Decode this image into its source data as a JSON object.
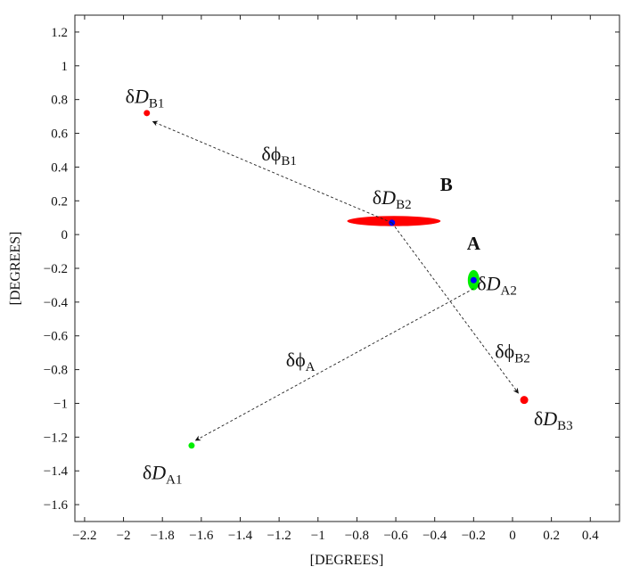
{
  "chart_data": {
    "type": "scatter",
    "xlabel": "[DEGREES]",
    "ylabel": "[DEGREES]",
    "xlim": [
      -2.25,
      0.55
    ],
    "ylim": [
      -1.7,
      1.3
    ],
    "xticks": [
      -2.2,
      -2,
      -1.8,
      -1.6,
      -1.4,
      -1.2,
      -1,
      -0.8,
      -0.6,
      -0.4,
      -0.2,
      0,
      0.2,
      0.4
    ],
    "yticks": [
      1.2,
      1,
      0.8,
      0.6,
      0.4,
      0.2,
      0,
      -0.2,
      -0.4,
      -0.6,
      -0.8,
      -1,
      -1.2,
      -1.4,
      -1.6
    ],
    "grid": false,
    "clusters": [
      {
        "color": "#ff0000",
        "shape": "ellipse",
        "cx": -0.61,
        "cy": 0.08,
        "rx": 0.24,
        "ry": 0.03
      },
      {
        "color": "#00ee00",
        "shape": "ellipse",
        "cx": -0.2,
        "cy": -0.27,
        "rx": 0.03,
        "ry": 0.06
      },
      {
        "color": "#ff0000",
        "shape": "dot",
        "cx": -1.88,
        "cy": 0.72,
        "r": 3.5
      },
      {
        "color": "#00ee00",
        "shape": "dot",
        "cx": -1.65,
        "cy": -1.25,
        "r": 3.5
      },
      {
        "color": "#ff0000",
        "shape": "dot",
        "cx": 0.06,
        "cy": -0.98,
        "r": 4.5
      }
    ],
    "centers": [
      {
        "color": "#0000ff",
        "x": -0.62,
        "y": 0.07
      },
      {
        "color": "#0000ff",
        "x": -0.2,
        "y": -0.27
      }
    ],
    "arrows": [
      {
        "from": [
          -0.62,
          0.07
        ],
        "to": [
          -1.85,
          0.67
        ]
      },
      {
        "from": [
          -0.62,
          0.07
        ],
        "to": [
          0.03,
          -0.94
        ]
      },
      {
        "from": [
          -0.2,
          -0.32
        ],
        "to": [
          -1.63,
          -1.22
        ]
      }
    ],
    "annotations": [
      {
        "kind": "sym",
        "greek": "δ",
        "italic": "D",
        "sub": "B1",
        "x": -1.89,
        "y": 0.78
      },
      {
        "kind": "sym",
        "greek": "δϕ",
        "italic": "",
        "sub": "B1",
        "x": -1.2,
        "y": 0.44
      },
      {
        "kind": "sym",
        "greek": "δ",
        "italic": "D",
        "sub": "B2",
        "x": -0.62,
        "y": 0.18
      },
      {
        "kind": "bold",
        "text": "B",
        "x": -0.34,
        "y": 0.26
      },
      {
        "kind": "bold",
        "text": "A",
        "x": -0.2,
        "y": -0.09
      },
      {
        "kind": "sym",
        "greek": "δ",
        "italic": "D",
        "sub": "A2",
        "x": -0.08,
        "y": -0.33
      },
      {
        "kind": "sym",
        "greek": "δϕ",
        "italic": "",
        "sub": "B2",
        "x": 0.0,
        "y": -0.73
      },
      {
        "kind": "sym",
        "greek": "δϕ",
        "italic": "",
        "sub": "A",
        "x": -1.09,
        "y": -0.78
      },
      {
        "kind": "sym",
        "greek": "δ",
        "italic": "D",
        "sub": "B3",
        "x": 0.21,
        "y": -1.13
      },
      {
        "kind": "sym",
        "greek": "δ",
        "italic": "D",
        "sub": "A1",
        "x": -1.8,
        "y": -1.45
      }
    ]
  }
}
